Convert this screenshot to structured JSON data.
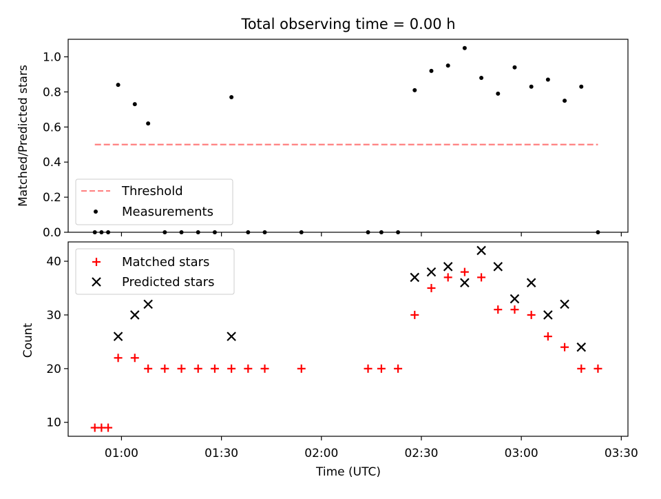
{
  "chart_data": [
    {
      "type": "scatter",
      "title": "Total observing time = 0.00 h",
      "ylabel": "Matched/Predicted stars",
      "xlabel": "",
      "xlim": [
        "00:44",
        "03:32"
      ],
      "ylim": [
        0,
        1.1
      ],
      "yticks": [
        0.0,
        0.2,
        0.4,
        0.6,
        0.8,
        1.0
      ],
      "ytick_labels": [
        "0.0",
        "0.2",
        "0.4",
        "0.6",
        "0.8",
        "1.0"
      ],
      "legend_position": "lower-left",
      "series": [
        {
          "name": "Threshold",
          "style": "dashed-line",
          "color": "#ff7f7f",
          "x": [
            "00:52",
            "03:23"
          ],
          "y": [
            0.5,
            0.5
          ]
        },
        {
          "name": "Measurements",
          "style": "dot",
          "color": "#000000",
          "x": [
            "00:52",
            "00:54",
            "00:56",
            "00:59",
            "01:04",
            "01:08",
            "01:13",
            "01:18",
            "01:23",
            "01:28",
            "01:33",
            "01:38",
            "01:43",
            "01:54",
            "02:14",
            "02:18",
            "02:23",
            "02:28",
            "02:33",
            "02:38",
            "02:43",
            "02:48",
            "02:53",
            "02:58",
            "03:03",
            "03:08",
            "03:13",
            "03:18",
            "03:23"
          ],
          "y": [
            0,
            0,
            0,
            0.84,
            0.73,
            0.62,
            0,
            0,
            0,
            0,
            0.77,
            0,
            0,
            0,
            0,
            0,
            0,
            0.81,
            0.92,
            0.95,
            1.05,
            0.88,
            0.79,
            0.94,
            0.83,
            0.87,
            0.75,
            0.83,
            0
          ]
        }
      ]
    },
    {
      "type": "scatter",
      "title": "",
      "ylabel": "Count",
      "xlabel": "Time (UTC)",
      "xlim": [
        "00:44",
        "03:32"
      ],
      "ylim": [
        7.4,
        43.6
      ],
      "yticks": [
        10,
        20,
        30,
        40
      ],
      "ytick_labels": [
        "10",
        "20",
        "30",
        "40"
      ],
      "xticks": [
        "01:00",
        "01:30",
        "02:00",
        "02:30",
        "03:00",
        "03:30"
      ],
      "xtick_labels": [
        "01:00",
        "01:30",
        "02:00",
        "02:30",
        "03:00",
        "03:30"
      ],
      "legend_position": "upper-left",
      "series": [
        {
          "name": "Matched stars",
          "style": "plus",
          "color": "#ff0000",
          "x": [
            "00:52",
            "00:54",
            "00:56",
            "00:59",
            "01:04",
            "01:08",
            "01:13",
            "01:18",
            "01:23",
            "01:28",
            "01:33",
            "01:38",
            "01:43",
            "01:54",
            "02:14",
            "02:18",
            "02:23",
            "02:28",
            "02:33",
            "02:38",
            "02:43",
            "02:48",
            "02:53",
            "02:58",
            "03:03",
            "03:08",
            "03:13",
            "03:18",
            "03:23"
          ],
          "y": [
            9,
            9,
            9,
            22,
            22,
            20,
            20,
            20,
            20,
            20,
            20,
            20,
            20,
            20,
            20,
            20,
            20,
            30,
            35,
            37,
            38,
            37,
            31,
            31,
            30,
            26,
            24,
            20,
            20
          ]
        },
        {
          "name": "Predicted stars",
          "style": "x",
          "color": "#000000",
          "x": [
            "00:59",
            "01:04",
            "01:08",
            "01:33",
            "02:28",
            "02:33",
            "02:38",
            "02:43",
            "02:48",
            "02:53",
            "02:58",
            "03:03",
            "03:08",
            "03:13",
            "03:18"
          ],
          "y": [
            26,
            30,
            32,
            26,
            37,
            38,
            39,
            36,
            42,
            39,
            33,
            36,
            30,
            32,
            24
          ]
        }
      ]
    }
  ]
}
